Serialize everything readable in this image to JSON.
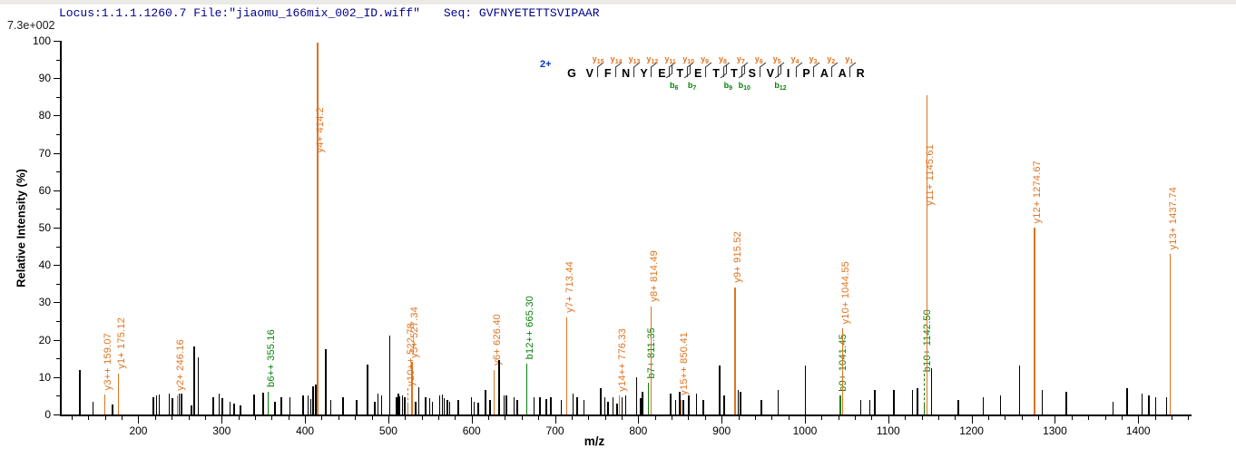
{
  "header": {
    "locus_text": "Locus:1.1.1.1260.7 File:\"jiaomu_166mix_002_ID.wiff\"",
    "seq_label": "Seq:",
    "sequence": "GVFNYETETTSVIPAAR",
    "max_intensity_label": "7.3e+002"
  },
  "axes": {
    "x_label": "m/z",
    "y_label": "Relative  Intensity (%)"
  },
  "colors": {
    "y_ion": "#E0731F",
    "b_ion": "#0A820A",
    "peak_black": "#000000",
    "header_text": "#00008B",
    "charge_blue": "#0033CC",
    "bracket": "#3a3a3a"
  },
  "ladder": {
    "charge": "2+",
    "residues": [
      "G",
      "V",
      "F",
      "N",
      "Y",
      "E",
      "T",
      "E",
      "T",
      "T",
      "S",
      "V",
      "I",
      "P",
      "A",
      "A",
      "R"
    ],
    "y_ions": [
      {
        "label": "y15",
        "before_index": 2
      },
      {
        "label": "y14",
        "before_index": 3
      },
      {
        "label": "y13",
        "before_index": 4
      },
      {
        "label": "y12",
        "before_index": 5
      },
      {
        "label": "y11",
        "before_index": 6
      },
      {
        "label": "y10",
        "before_index": 7
      },
      {
        "label": "y9",
        "before_index": 8
      },
      {
        "label": "y8",
        "before_index": 9
      },
      {
        "label": "y7",
        "before_index": 10
      },
      {
        "label": "y6",
        "before_index": 11
      },
      {
        "label": "y5",
        "before_index": 12
      },
      {
        "label": "y4",
        "before_index": 13
      },
      {
        "label": "y3",
        "before_index": 14
      },
      {
        "label": "y2",
        "before_index": 15
      },
      {
        "label": "y1",
        "before_index": 16
      }
    ],
    "b_ions": [
      {
        "label": "b6",
        "after_index": 5
      },
      {
        "label": "b7",
        "after_index": 6
      },
      {
        "label": "b9",
        "after_index": 8
      },
      {
        "label": "b10",
        "after_index": 9
      },
      {
        "label": "b12",
        "after_index": 11
      }
    ]
  },
  "chart_data": {
    "type": "bar",
    "subtype": "ms2-peptide-fragment-spectrum",
    "title": "",
    "xlabel": "m/z",
    "ylabel": "Relative  Intensity (%)",
    "xlim": [
      108,
      1464
    ],
    "ylim": [
      0,
      100
    ],
    "x_major_ticks": [
      200,
      300,
      400,
      500,
      600,
      700,
      800,
      900,
      1000,
      1100,
      1200,
      1300,
      1400
    ],
    "x_minor_tick_step": 20,
    "y_major_ticks": [
      0,
      10,
      20,
      30,
      40,
      50,
      60,
      70,
      80,
      90,
      100
    ],
    "y_minor_tick_step": 5,
    "grid": false,
    "base_peak_intensity": "7.3e+002",
    "peptide": "GVFNYETETTSVIPAAR",
    "precursor_charge": "2+",
    "peak_types": {
      "k": "unassigned",
      "y": "y-ion",
      "b": "b-ion",
      "yd": "y-ion-dashed",
      "bd": "b-ion-dashed"
    },
    "peaks": [
      [
        129,
        12
      ],
      [
        145,
        3.5
      ],
      [
        159.07,
        5.4,
        "y",
        "y3++ 159.07"
      ],
      [
        168,
        2.7
      ],
      [
        175.12,
        11,
        "y",
        "y1+ 175.12"
      ],
      [
        217,
        4.6
      ],
      [
        221,
        5
      ],
      [
        224,
        5.3
      ],
      [
        236,
        5.5
      ],
      [
        240,
        4.3
      ],
      [
        246.16,
        5.2,
        "y",
        "y2+ 246.16"
      ],
      [
        248,
        5.6
      ],
      [
        251,
        5.6
      ],
      [
        263,
        2.5
      ],
      [
        266,
        18.3
      ],
      [
        271,
        15.3
      ],
      [
        289,
        4.5
      ],
      [
        296,
        5.5
      ],
      [
        300,
        4.3
      ],
      [
        309,
        3.5
      ],
      [
        314,
        3
      ],
      [
        322,
        2.5
      ],
      [
        338,
        5.3
      ],
      [
        349,
        5.8
      ],
      [
        355.16,
        6,
        "b",
        "b6++ 355.16"
      ],
      [
        363,
        3.5
      ],
      [
        371,
        4.5
      ],
      [
        381,
        4.5
      ],
      [
        397,
        5.2
      ],
      [
        403,
        5.2
      ],
      [
        406,
        4.2
      ],
      [
        409,
        7.5
      ],
      [
        412,
        8
      ],
      [
        414.2,
        99.5,
        "y",
        "y4+ 414.2"
      ],
      [
        424,
        17.5
      ],
      [
        430,
        4
      ],
      [
        445,
        4.5
      ],
      [
        461,
        4
      ],
      [
        474,
        13.3
      ],
      [
        483,
        3.5
      ],
      [
        487,
        5.5
      ],
      [
        491,
        5
      ],
      [
        501,
        21
      ],
      [
        509,
        4.5
      ],
      [
        511,
        5.5
      ],
      [
        513,
        4.8
      ],
      [
        516,
        5
      ],
      [
        519,
        4.5
      ],
      [
        522.78,
        3,
        "yd",
        "y10++ 522.78"
      ],
      [
        527.34,
        14,
        "y",
        "y5+ 527.34"
      ],
      [
        532,
        3.5
      ],
      [
        536,
        7.4
      ],
      [
        544,
        4.5
      ],
      [
        549,
        4.3
      ],
      [
        552,
        3.5
      ],
      [
        561,
        5
      ],
      [
        564,
        5.3
      ],
      [
        566,
        4.3
      ],
      [
        570,
        4
      ],
      [
        573,
        3.5
      ],
      [
        583,
        4
      ],
      [
        599,
        4.5
      ],
      [
        602,
        3.5
      ],
      [
        607,
        3.2
      ],
      [
        616,
        6.5
      ],
      [
        621,
        4
      ],
      [
        626.4,
        12,
        "y",
        "y6+ 626.40"
      ],
      [
        632,
        14.5
      ],
      [
        638,
        5
      ],
      [
        641,
        5
      ],
      [
        650,
        4.5
      ],
      [
        654,
        4
      ],
      [
        665.3,
        13.5,
        "b",
        "b12++ 665.30"
      ],
      [
        674,
        4.5
      ],
      [
        681,
        4.5
      ],
      [
        689,
        4.2
      ],
      [
        694,
        4.5
      ],
      [
        707,
        4
      ],
      [
        713.44,
        26,
        "y",
        "y7+ 713.44"
      ],
      [
        721,
        5.5
      ],
      [
        726,
        4.5
      ],
      [
        734,
        4
      ],
      [
        754,
        7
      ],
      [
        759,
        4.5
      ],
      [
        763,
        3.5
      ],
      [
        769,
        4.5
      ],
      [
        774,
        3
      ],
      [
        776.33,
        5,
        "y",
        "y14++ 776.33"
      ],
      [
        780,
        4.5
      ],
      [
        784,
        5
      ],
      [
        797,
        10
      ],
      [
        802,
        4.3
      ],
      [
        804,
        6
      ],
      [
        811.35,
        8.5,
        "b",
        "b7+ 811.35"
      ],
      [
        814.49,
        29,
        "y",
        "y8+ 814.49"
      ],
      [
        838,
        5.5
      ],
      [
        844,
        4
      ],
      [
        849,
        6
      ],
      [
        850.41,
        4,
        "y",
        "y15++ 850.41"
      ],
      [
        853,
        4
      ],
      [
        860,
        5
      ],
      [
        869,
        5.5
      ],
      [
        877,
        4
      ],
      [
        897,
        13
      ],
      [
        902,
        5
      ],
      [
        915.52,
        34,
        "y",
        "y9+ 915.52"
      ],
      [
        919,
        6.5
      ],
      [
        922,
        6
      ],
      [
        947,
        4
      ],
      [
        967,
        6.5
      ],
      [
        1000,
        13
      ],
      [
        1041.45,
        5,
        "b",
        "b9+ 1041.45"
      ],
      [
        1044.55,
        23,
        "y",
        "y10+ 1044.55"
      ],
      [
        1066,
        4
      ],
      [
        1077,
        4
      ],
      [
        1083,
        6.5
      ],
      [
        1106,
        6.5
      ],
      [
        1128,
        6.5
      ],
      [
        1134,
        7
      ],
      [
        1142.5,
        3,
        "bd",
        "b10+ 1142.50"
      ],
      [
        1145.61,
        85.5,
        "y",
        "y11+ 1145.61"
      ],
      [
        1151,
        12.5
      ],
      [
        1183,
        4
      ],
      [
        1213,
        4.5
      ],
      [
        1234,
        5
      ],
      [
        1257,
        13
      ],
      [
        1274.67,
        50,
        "y",
        "y12+ 1274.67"
      ],
      [
        1284,
        6.5
      ],
      [
        1313,
        6
      ],
      [
        1369,
        3.5
      ],
      [
        1386,
        7
      ],
      [
        1404,
        5.5
      ],
      [
        1412,
        5
      ],
      [
        1420,
        4.5
      ],
      [
        1433,
        4.7
      ],
      [
        1437.74,
        43,
        "y",
        "y13+ 1437.74"
      ]
    ]
  }
}
